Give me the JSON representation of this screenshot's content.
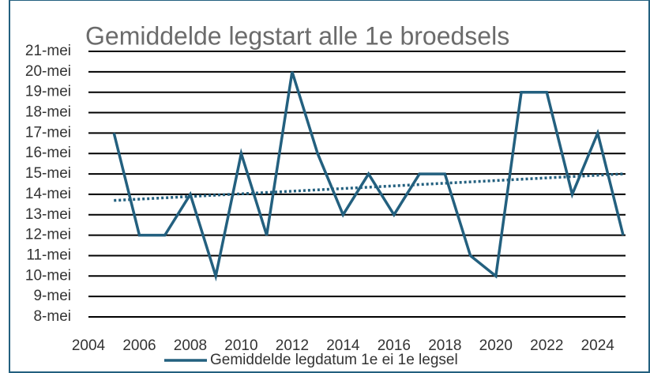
{
  "chart_data": {
    "type": "line",
    "title": "Gemiddelde legstart alle 1e broedsels",
    "x": [
      2005,
      2006,
      2007,
      2008,
      2009,
      2010,
      2011,
      2012,
      2013,
      2014,
      2015,
      2016,
      2017,
      2018,
      2019,
      2020,
      2021,
      2022,
      2023,
      2024,
      2025
    ],
    "series": [
      {
        "name": "Gemiddelde legdatum 1e ei 1e legsel",
        "color": "#23607f",
        "values": [
          17,
          12,
          12,
          14,
          10,
          16,
          12,
          20,
          16,
          13,
          15,
          13,
          15,
          15,
          11,
          10,
          19,
          19,
          14,
          17,
          12
        ]
      }
    ],
    "trend": {
      "x": [
        2005,
        2025
      ],
      "values": [
        13.7,
        15.0
      ],
      "color": "#23607f"
    },
    "xlim": [
      2004,
      2025
    ],
    "xticks": [
      2004,
      2006,
      2008,
      2010,
      2012,
      2014,
      2016,
      2018,
      2020,
      2022,
      2024
    ],
    "ylim": [
      8,
      21
    ],
    "yticks": [
      {
        "value": 8,
        "label": "8-mei"
      },
      {
        "value": 9,
        "label": "9-mei"
      },
      {
        "value": 10,
        "label": "10-mei"
      },
      {
        "value": 11,
        "label": "11-mei"
      },
      {
        "value": 12,
        "label": "12-mei"
      },
      {
        "value": 13,
        "label": "13-mei"
      },
      {
        "value": 14,
        "label": "14-mei"
      },
      {
        "value": 15,
        "label": "15-mei"
      },
      {
        "value": 16,
        "label": "16-mei"
      },
      {
        "value": 17,
        "label": "17-mei"
      },
      {
        "value": 18,
        "label": "18-mei"
      },
      {
        "value": 19,
        "label": "19-mei"
      },
      {
        "value": 20,
        "label": "20-mei"
      },
      {
        "value": 21,
        "label": "21-mei"
      }
    ],
    "grid": true,
    "legend": "bottom"
  }
}
